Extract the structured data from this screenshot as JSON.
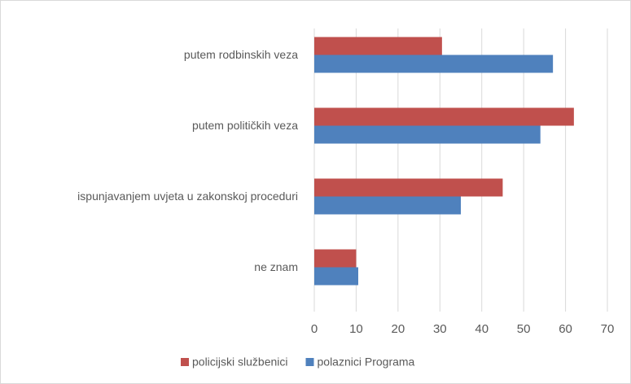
{
  "chart_data": {
    "type": "hbar",
    "categories": [
      "putem rodbinskih veza",
      "putem političkih veza",
      "ispunjavanjem uvjeta u zakonskoj proceduri",
      "ne znam"
    ],
    "series": [
      {
        "name": "policijski službenici",
        "color": "#c0504d",
        "values": [
          30.5,
          62,
          45,
          10
        ]
      },
      {
        "name": "polaznici Programa",
        "color": "#4f81bd",
        "values": [
          57,
          54,
          35,
          10.5
        ]
      }
    ],
    "xlim": [
      0,
      70
    ],
    "xticks": [
      0,
      10,
      20,
      30,
      40,
      50,
      60,
      70
    ],
    "grid": true,
    "legend": "bottom"
  }
}
